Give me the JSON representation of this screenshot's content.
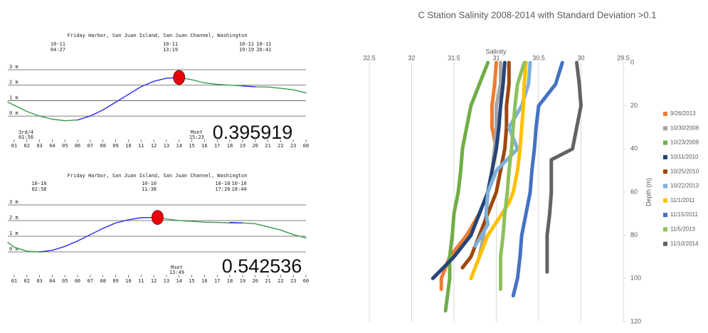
{
  "chart_data": [
    {
      "type": "line",
      "title": "Friday Harbor, San Juan Island, San Juan Channel, Washington",
      "annotations": [
        {
          "date": "10-11",
          "time": "04:27"
        },
        {
          "date": "10-11",
          "time": "13:19"
        },
        {
          "date": "10-11",
          "time": "19:19"
        },
        {
          "date": "10-11",
          "time": "20:41"
        }
      ],
      "events": [
        {
          "label": "3rd/4",
          "time": "01:56"
        },
        {
          "label": "Mset",
          "time": "15:23"
        }
      ],
      "value_text": "0.395919",
      "marker": {
        "x": 14,
        "y": 2.5,
        "color": "#e8000b"
      },
      "x": [
        0.5,
        1,
        2,
        3,
        4,
        5,
        6,
        7,
        8,
        9,
        10,
        11,
        12,
        13,
        14,
        15,
        16,
        17,
        18,
        19,
        20,
        21,
        22,
        23,
        24
      ],
      "series": [
        {
          "color": "#3a9a4a",
          "values": [
            0.9,
            0.7,
            0.3,
            0.0,
            -0.2,
            -0.3,
            -0.25,
            null,
            null,
            null,
            null,
            null,
            null,
            null,
            2.5,
            2.35,
            2.15,
            2.05,
            2.0,
            1.95,
            1.9,
            1.88,
            1.8,
            1.7,
            1.5
          ]
        },
        {
          "color": "#2b2bf0",
          "values": [
            null,
            null,
            null,
            null,
            null,
            null,
            -0.25,
            0.0,
            0.4,
            0.9,
            1.4,
            1.9,
            2.25,
            2.45,
            2.5,
            null,
            null,
            null,
            null,
            1.95,
            1.9,
            null,
            null,
            null,
            null
          ]
        }
      ],
      "xlim": [
        0.5,
        24
      ],
      "ylim": [
        -0.5,
        3
      ],
      "xticks": [
        {
          "value": 1,
          "label": "01"
        },
        {
          "value": 2,
          "label": "02"
        },
        {
          "value": 3,
          "label": "03"
        },
        {
          "value": 4,
          "label": "04"
        },
        {
          "value": 5,
          "label": "05"
        },
        {
          "value": 6,
          "label": "06"
        },
        {
          "value": 7,
          "label": "07"
        },
        {
          "value": 8,
          "label": "08"
        },
        {
          "value": 9,
          "label": "09"
        },
        10,
        11,
        12,
        13,
        14,
        15,
        16,
        17,
        18,
        19,
        20,
        21,
        22,
        23,
        {
          "value": 24,
          "label": "00"
        }
      ],
      "yticks": [
        {
          "value": 0,
          "label": "0 m"
        },
        {
          "value": 1,
          "label": "1 m"
        },
        {
          "value": 2,
          "label": "2 m"
        },
        {
          "value": 3,
          "label": "3 m"
        }
      ],
      "grid": true
    },
    {
      "type": "line",
      "title": "Friday Harbor, San Juan Island, San Juan Channel, Washington",
      "annotations": [
        {
          "date": "10-10",
          "time": "02:58"
        },
        {
          "date": "10-10",
          "time": "11:38"
        },
        {
          "date": "10-10",
          "time": "17:26"
        },
        {
          "date": "10-10",
          "time": "18:44"
        }
      ],
      "events": [
        {
          "label": "Mset",
          "time": "13:49"
        }
      ],
      "value_text": "0.542536",
      "marker": {
        "x": 12.3,
        "y": 2.2,
        "color": "#e8000b"
      },
      "x": [
        0.5,
        1,
        2,
        3,
        4,
        5,
        6,
        7,
        8,
        9,
        10,
        11,
        12,
        13,
        14,
        15,
        16,
        17,
        18,
        19,
        20,
        21,
        22,
        23,
        24
      ],
      "series": [
        {
          "color": "#3a9a4a",
          "values": [
            0.6,
            0.3,
            0.05,
            0.0,
            null,
            null,
            null,
            null,
            null,
            null,
            null,
            null,
            2.2,
            2.1,
            2.0,
            1.95,
            1.9,
            1.88,
            1.85,
            1.85,
            1.8,
            1.6,
            1.4,
            1.1,
            0.9
          ]
        },
        {
          "color": "#2b2bf0",
          "values": [
            null,
            null,
            null,
            0.0,
            0.1,
            0.35,
            0.7,
            1.1,
            1.5,
            1.85,
            2.05,
            2.18,
            2.2,
            null,
            null,
            null,
            null,
            null,
            1.88,
            1.85,
            null,
            null,
            null,
            null,
            null
          ]
        }
      ],
      "xlim": [
        0.5,
        24
      ],
      "ylim": [
        -0.5,
        3
      ],
      "xticks": [
        {
          "value": 1,
          "label": "01"
        },
        {
          "value": 2,
          "label": "02"
        },
        {
          "value": 3,
          "label": "03"
        },
        {
          "value": 4,
          "label": "04"
        },
        {
          "value": 5,
          "label": "05"
        },
        {
          "value": 6,
          "label": "06"
        },
        {
          "value": 7,
          "label": "07"
        },
        {
          "value": 8,
          "label": "08"
        },
        {
          "value": 9,
          "label": "09"
        },
        10,
        11,
        12,
        13,
        14,
        15,
        16,
        17,
        18,
        19,
        20,
        21,
        22,
        23,
        {
          "value": 24,
          "label": "00"
        }
      ],
      "yticks": [
        {
          "value": 0,
          "label": "0 m"
        },
        {
          "value": 1,
          "label": "1 m"
        },
        {
          "value": 2,
          "label": "2 m"
        },
        {
          "value": 3,
          "label": "3 m"
        }
      ],
      "grid": true
    },
    {
      "type": "line",
      "title": "C Station Salinity 2008-2014 with Standard Deviation >0.1",
      "x_label": "Salinity",
      "y_label": "Depth (m)",
      "xlim": [
        32.5,
        29.5
      ],
      "ylim": [
        120,
        0
      ],
      "xticks": [
        32.5,
        32,
        31.5,
        31,
        30.5,
        30,
        29.5
      ],
      "yticks": [
        0,
        20,
        40,
        60,
        80,
        100,
        120
      ],
      "grid": true,
      "series": [
        {
          "name": "9/26/2013",
          "color": "#ed7d31",
          "x": [
            31.0,
            31.02,
            31.05,
            31.05,
            31.0,
            31.05,
            31.1,
            31.2,
            31.35,
            31.55,
            31.65,
            31.65
          ],
          "values": [
            0,
            10,
            20,
            30,
            40,
            50,
            60,
            70,
            80,
            90,
            100,
            105
          ]
        },
        {
          "name": "10/30/2008",
          "color": "#a5a5a5",
          "x": [
            30.95,
            30.95,
            31.0,
            31.0,
            31.02,
            31.05,
            31.1,
            31.12,
            31.15,
            31.2
          ],
          "values": [
            0,
            10,
            20,
            30,
            40,
            50,
            60,
            70,
            80,
            90
          ]
        },
        {
          "name": "10/23/2009",
          "color": "#70ad47",
          "x": [
            31.1,
            31.2,
            31.3,
            31.35,
            31.4,
            31.42,
            31.45,
            31.5,
            31.52,
            31.55,
            31.55,
            31.6
          ],
          "values": [
            0,
            10,
            20,
            30,
            40,
            50,
            60,
            70,
            80,
            90,
            100,
            115
          ]
        },
        {
          "name": "10/11/2010",
          "color": "#264478",
          "x": [
            30.9,
            30.92,
            30.95,
            30.97,
            31.0,
            31.05,
            31.1,
            31.2,
            31.3,
            31.5,
            31.75
          ],
          "values": [
            0,
            10,
            20,
            30,
            40,
            50,
            60,
            70,
            80,
            90,
            100
          ]
        },
        {
          "name": "10/25/2010",
          "color": "#9e480e",
          "x": [
            30.85,
            30.85,
            30.88,
            30.88,
            30.9,
            30.95,
            31.0,
            31.1,
            31.2,
            31.3,
            31.4
          ],
          "values": [
            0,
            10,
            20,
            30,
            40,
            50,
            60,
            70,
            80,
            90,
            95
          ]
        },
        {
          "name": "10/22/2013",
          "color": "#7cafdd",
          "x": [
            30.6,
            30.62,
            30.7,
            30.85,
            30.75,
            31.0,
            31.1,
            31.12,
            31.1,
            31.25
          ],
          "values": [
            0,
            10,
            20,
            30,
            40,
            50,
            60,
            70,
            75,
            85
          ]
        },
        {
          "name": "11/1/2011",
          "color": "#ffc000",
          "x": [
            30.65,
            30.67,
            30.68,
            30.7,
            30.72,
            30.75,
            30.8,
            30.85,
            31.1,
            31.2,
            31.3
          ],
          "values": [
            0,
            10,
            20,
            30,
            40,
            50,
            60,
            65,
            80,
            90,
            100
          ]
        },
        {
          "name": "11/15/2011",
          "color": "#4472c4",
          "x": [
            30.22,
            30.3,
            30.5,
            30.53,
            30.55,
            30.58,
            30.6,
            30.65,
            30.7,
            30.72,
            30.75,
            30.8
          ],
          "values": [
            0,
            10,
            20,
            30,
            40,
            50,
            60,
            70,
            80,
            90,
            100,
            108
          ]
        },
        {
          "name": "11/5/2013",
          "color": "#8dc15e",
          "x": [
            30.67,
            30.75,
            30.78,
            30.8,
            30.82,
            30.85,
            30.87,
            30.9,
            30.92,
            30.95,
            30.95,
            30.95
          ],
          "values": [
            0,
            10,
            20,
            30,
            40,
            50,
            60,
            70,
            80,
            90,
            100,
            105
          ]
        },
        {
          "name": "11/10/2014",
          "color": "#636363",
          "x": [
            30.05,
            30.02,
            30.0,
            30.05,
            30.1,
            30.35,
            30.35,
            30.37,
            30.4,
            30.4,
            30.4
          ],
          "values": [
            0,
            10,
            20,
            30,
            40,
            45,
            60,
            70,
            80,
            90,
            97
          ]
        }
      ]
    }
  ]
}
